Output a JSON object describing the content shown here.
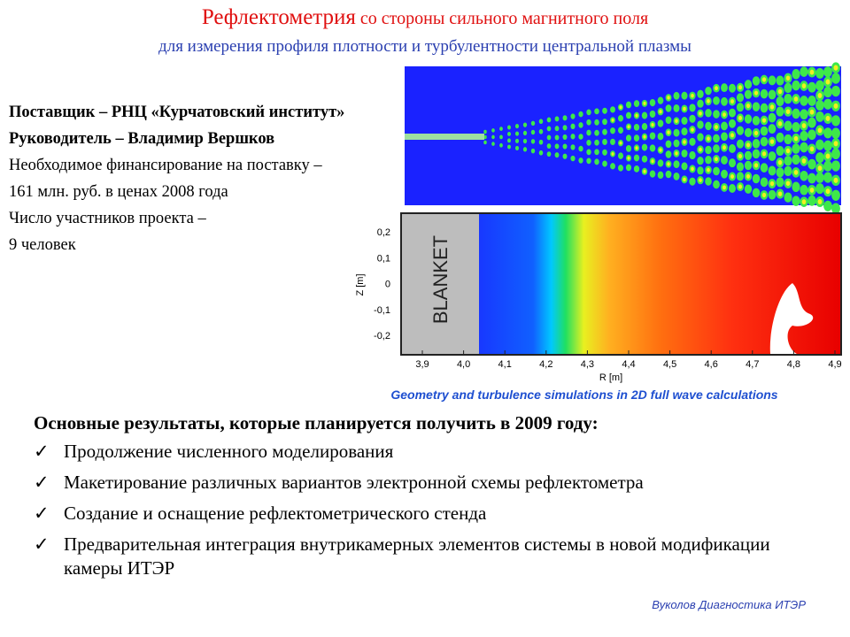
{
  "header": {
    "title_main": "Рефлектометрия",
    "title_rest": "со стороны сильного магнитного поля",
    "subtitle": "для измерения профиля плотности и турбулентности центральной плазмы"
  },
  "info": {
    "lines": [
      "Поставщик – РНЦ «Курчатовский институт»",
      "Руководитель – Владимир Вершков",
      "Необходимое финансирование на поставку –",
      "161 млн. руб. в ценах 2008 года",
      "Число участников проекта –",
      "9 человек"
    ]
  },
  "figure": {
    "blanket_label": "BLANKET",
    "y_axis_label": "Z [m]",
    "x_axis_label": "R [m]",
    "y_ticks": [
      "0,2",
      "0,1",
      "0",
      "-0,1",
      "-0,2"
    ],
    "x_ticks": [
      "3,9",
      "4,0",
      "4,1",
      "4,2",
      "4,3",
      "4,4",
      "4,5",
      "4,6",
      "4,7",
      "4,8",
      "4,9"
    ],
    "caption": "Geometry and turbulence simulations in 2D full wave calculations"
  },
  "results": {
    "heading": "Основные результаты, которые планируется получить в 2009 году:",
    "items": [
      "Продолжение численного моделирования",
      "Макетирование различных вариантов электронной схемы рефлектометра",
      "Создание и оснащение рефлектометрического стенда",
      "Предварительная интеграция внутрикамерных элементов системы в новой модификации камеры ИТЭР"
    ]
  },
  "footer": "Вуколов Диагностика ИТЭР"
}
